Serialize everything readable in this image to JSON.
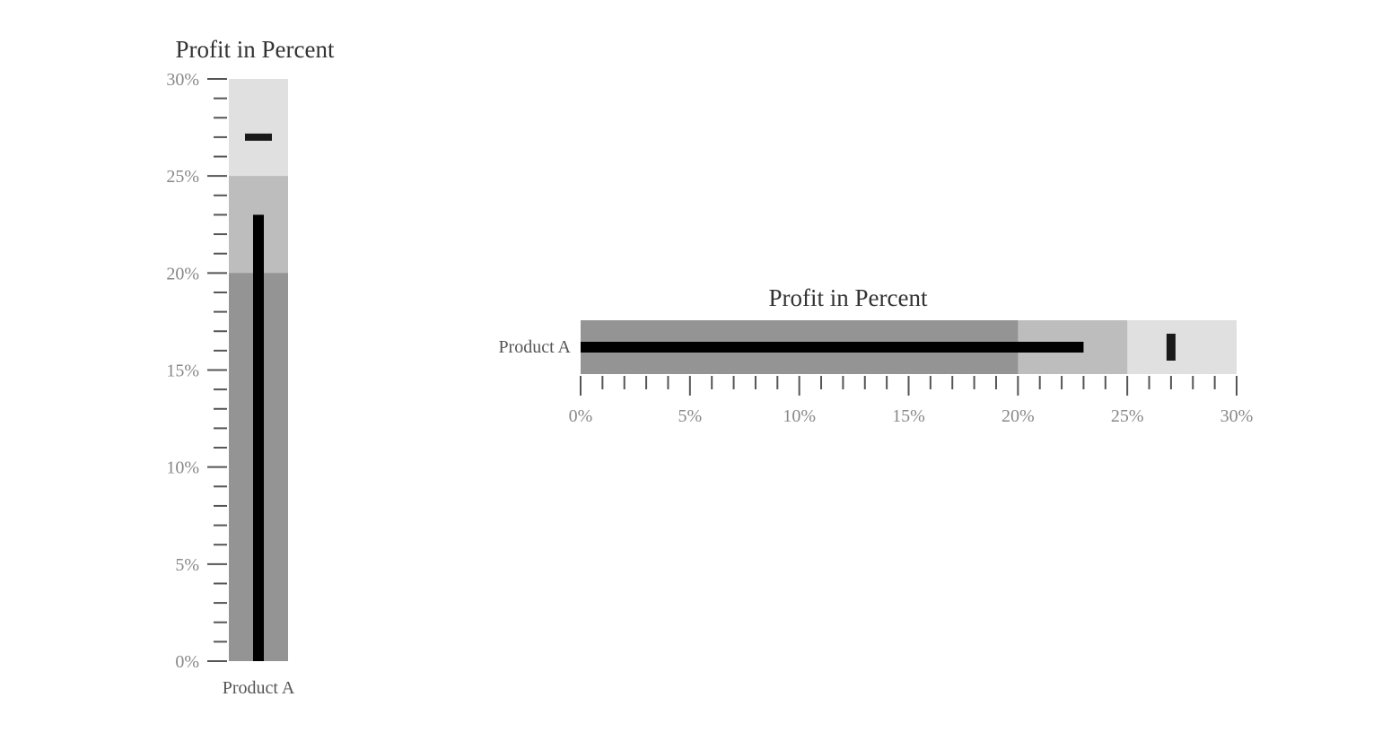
{
  "chart_data": [
    {
      "type": "bullet",
      "orientation": "vertical",
      "title": "Profit in Percent",
      "category": "Product A",
      "ranges": [
        20,
        25,
        30
      ],
      "range_colors": [
        "#949494",
        "#bdbdbd",
        "#e0e0e0"
      ],
      "measure": 23,
      "measure_color": "#000000",
      "target": 27,
      "target_color": "#1a1a1a",
      "axis_range": [
        0,
        30
      ],
      "tick_labels": [
        "0%",
        "5%",
        "10%",
        "15%",
        "20%",
        "25%",
        "30%"
      ],
      "major_tick_values": [
        0,
        5,
        10,
        15,
        20,
        25,
        30
      ],
      "minor_tick_step": 1
    },
    {
      "type": "bullet",
      "orientation": "horizontal",
      "title": "Profit in Percent",
      "category": "Product A",
      "ranges": [
        20,
        25,
        30
      ],
      "range_colors": [
        "#949494",
        "#bdbdbd",
        "#e0e0e0"
      ],
      "measure": 23,
      "measure_color": "#000000",
      "target": 27,
      "target_color": "#1a1a1a",
      "axis_range": [
        0,
        30
      ],
      "tick_labels": [
        "0%",
        "5%",
        "10%",
        "15%",
        "20%",
        "25%",
        "30%"
      ],
      "major_tick_values": [
        0,
        5,
        10,
        15,
        20,
        25,
        30
      ],
      "minor_tick_step": 1
    }
  ]
}
